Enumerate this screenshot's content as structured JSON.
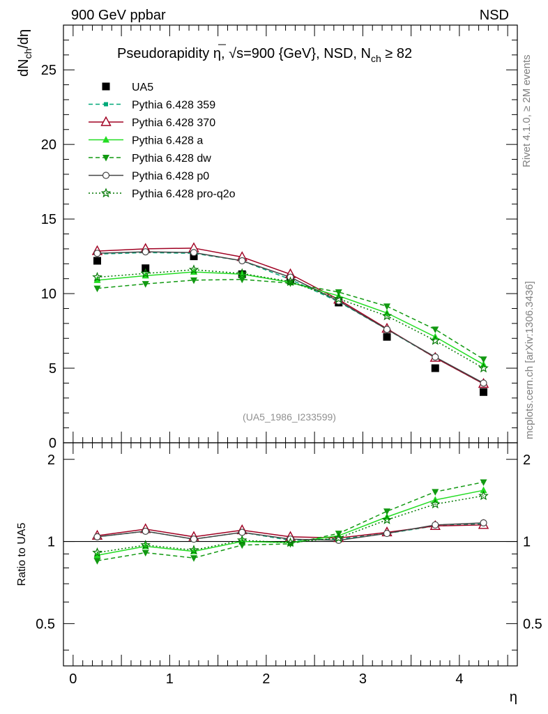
{
  "header": {
    "left": "900 GeV ppbar",
    "right": "NSD"
  },
  "side_labels": {
    "rivet": "Rivet 4.1.0, ≥ 2M events",
    "mcplots": "mcplots.cern.ch [arXiv:1306.3436]"
  },
  "main_title": {
    "prefix": "Pseudorapidity η, ",
    "sqrt": "√",
    "body": "s=900 {GeV}, NSD, N",
    "sub": "ch",
    "suffix": " ≥ 82"
  },
  "analysis_ref": "(UA5_1986_I233599)",
  "ylabel": {
    "d1": "dN",
    "sub": "ch",
    "d2": "/dη"
  },
  "ratio_ylabel": "Ratio to UA5",
  "xlabel": "η",
  "chart_data": [
    {
      "type": "line",
      "title": "Pseudorapidity η, √s=900 {GeV}, NSD, N_ch ≥ 82",
      "xlabel": "η",
      "ylabel": "dN_ch/dη",
      "xlim": [
        -0.1,
        4.6
      ],
      "ylim": [
        0,
        28
      ],
      "x_ticks": [
        "0",
        "1",
        "2",
        "3",
        "4"
      ],
      "y_ticks": [
        "0",
        "5",
        "10",
        "15",
        "20",
        "25"
      ],
      "x": [
        0.25,
        0.75,
        1.25,
        1.75,
        2.25,
        2.75,
        3.25,
        3.75,
        4.25
      ],
      "series": [
        {
          "name": "UA5",
          "color": "#000000",
          "marker": "square",
          "style": "points",
          "values": [
            12.2,
            11.7,
            12.5,
            11.3,
            10.9,
            9.4,
            7.1,
            5.0,
            3.4
          ]
        },
        {
          "name": "Pythia 6.428 359",
          "color": "#00a878",
          "marker": "small-square",
          "style": "dashed",
          "values": [
            12.65,
            12.75,
            12.7,
            12.2,
            10.95,
            9.45,
            7.6,
            5.7,
            3.95
          ]
        },
        {
          "name": "Pythia 6.428 370",
          "color": "#a00022",
          "marker": "open-triangle",
          "style": "solid",
          "values": [
            12.85,
            13.0,
            13.05,
            12.45,
            11.3,
            9.6,
            7.65,
            5.7,
            3.95
          ]
        },
        {
          "name": "Pythia 6.428 a",
          "color": "#22dd22",
          "marker": "triangle",
          "style": "solid",
          "values": [
            10.9,
            11.2,
            11.45,
            11.3,
            10.75,
            9.85,
            8.7,
            7.1,
            5.25
          ]
        },
        {
          "name": "Pythia 6.428 dw",
          "color": "#119911",
          "marker": "triangle-down",
          "style": "dashed",
          "values": [
            10.35,
            10.65,
            10.9,
            10.95,
            10.7,
            10.1,
            9.15,
            7.6,
            5.6
          ]
        },
        {
          "name": "Pythia 6.428 p0",
          "color": "#444444",
          "marker": "open-circle",
          "style": "solid",
          "values": [
            12.7,
            12.8,
            12.75,
            12.2,
            11.1,
            9.5,
            7.6,
            5.75,
            4.0
          ]
        },
        {
          "name": "Pythia 6.428 pro-q2o",
          "color": "#007700",
          "marker": "star",
          "style": "dotted",
          "values": [
            11.1,
            11.35,
            11.6,
            11.35,
            10.8,
            9.65,
            8.5,
            6.85,
            5.0
          ]
        }
      ]
    },
    {
      "type": "line",
      "title": "",
      "xlabel": "η",
      "ylabel": "Ratio to UA5",
      "xlim": [
        -0.1,
        4.6
      ],
      "ylim": [
        0.35,
        2.3
      ],
      "x_ticks": [
        "0",
        "1",
        "2",
        "3",
        "4"
      ],
      "y_ticks": [
        "0.5",
        "1",
        "2"
      ],
      "reference_line": 1,
      "x": [
        0.25,
        0.75,
        1.25,
        1.75,
        2.25,
        2.75,
        3.25,
        3.75,
        4.25
      ],
      "series": [
        {
          "name": "Pythia 6.428 359",
          "color": "#00a878",
          "marker": "small-square",
          "style": "dashed",
          "values": [
            1.04,
            1.09,
            1.02,
            1.08,
            1.01,
            1.02,
            1.07,
            1.14,
            1.16
          ]
        },
        {
          "name": "Pythia 6.428 370",
          "color": "#a00022",
          "marker": "open-triangle",
          "style": "solid",
          "values": [
            1.05,
            1.11,
            1.04,
            1.1,
            1.04,
            1.03,
            1.08,
            1.14,
            1.15
          ]
        },
        {
          "name": "Pythia 6.428 a",
          "color": "#22dd22",
          "marker": "triangle",
          "style": "solid",
          "values": [
            0.89,
            0.96,
            0.92,
            1.0,
            0.99,
            1.05,
            1.23,
            1.42,
            1.54
          ]
        },
        {
          "name": "Pythia 6.428 dw",
          "color": "#119911",
          "marker": "triangle-down",
          "style": "dashed",
          "values": [
            0.85,
            0.91,
            0.87,
            0.97,
            0.98,
            1.07,
            1.29,
            1.52,
            1.65
          ]
        },
        {
          "name": "Pythia 6.428 p0",
          "color": "#444444",
          "marker": "open-circle",
          "style": "solid",
          "values": [
            1.04,
            1.09,
            1.02,
            1.08,
            1.02,
            1.01,
            1.07,
            1.15,
            1.17
          ]
        },
        {
          "name": "Pythia 6.428 pro-q2o",
          "color": "#007700",
          "marker": "star",
          "style": "dotted",
          "values": [
            0.91,
            0.97,
            0.93,
            1.01,
            0.99,
            1.03,
            1.2,
            1.37,
            1.47
          ]
        }
      ]
    }
  ]
}
